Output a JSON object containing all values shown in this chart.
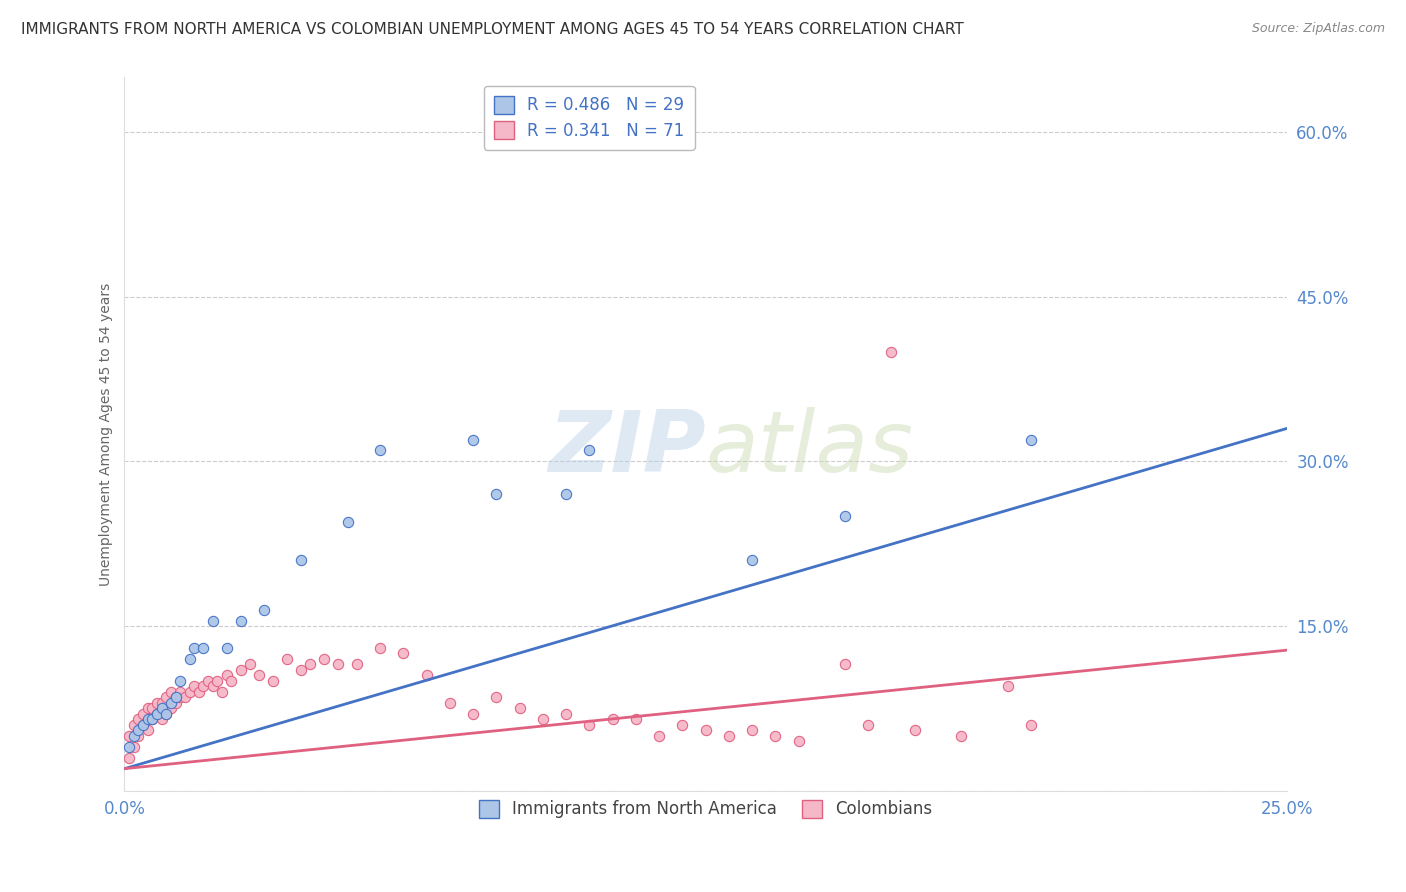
{
  "title": "IMMIGRANTS FROM NORTH AMERICA VS COLOMBIAN UNEMPLOYMENT AMONG AGES 45 TO 54 YEARS CORRELATION CHART",
  "source": "Source: ZipAtlas.com",
  "ylabel": "Unemployment Among Ages 45 to 54 years",
  "xmin": 0.0,
  "xmax": 0.25,
  "ymin": 0.0,
  "ymax": 0.65,
  "yticks": [
    0.0,
    0.15,
    0.3,
    0.45,
    0.6
  ],
  "ytick_labels": [
    "",
    "15.0%",
    "30.0%",
    "45.0%",
    "60.0%"
  ],
  "xticks": [
    0.0,
    0.05,
    0.1,
    0.15,
    0.2,
    0.25
  ],
  "xtick_labels": [
    "0.0%",
    "",
    "",
    "",
    "",
    "25.0%"
  ],
  "watermark_part1": "ZIP",
  "watermark_part2": "atlas",
  "blue_color": "#adc6e8",
  "blue_line_color": "#4472c4",
  "pink_color": "#f5b8c8",
  "pink_line_color": "#e06080",
  "legend_blue_label": "R = 0.486   N = 29",
  "legend_pink_label": "R = 0.341   N = 71",
  "legend_series1": "Immigrants from North America",
  "legend_series2": "Colombians",
  "blue_scatter_x": [
    0.001,
    0.002,
    0.003,
    0.004,
    0.005,
    0.006,
    0.007,
    0.008,
    0.009,
    0.01,
    0.011,
    0.012,
    0.014,
    0.015,
    0.017,
    0.019,
    0.022,
    0.025,
    0.03,
    0.038,
    0.048,
    0.055,
    0.075,
    0.08,
    0.095,
    0.1,
    0.135,
    0.155,
    0.195
  ],
  "blue_scatter_y": [
    0.04,
    0.05,
    0.055,
    0.06,
    0.065,
    0.065,
    0.07,
    0.075,
    0.07,
    0.08,
    0.085,
    0.1,
    0.12,
    0.13,
    0.13,
    0.155,
    0.13,
    0.155,
    0.165,
    0.21,
    0.245,
    0.31,
    0.32,
    0.27,
    0.27,
    0.31,
    0.21,
    0.25,
    0.32
  ],
  "pink_scatter_x": [
    0.001,
    0.001,
    0.002,
    0.002,
    0.003,
    0.003,
    0.004,
    0.004,
    0.005,
    0.005,
    0.006,
    0.006,
    0.007,
    0.007,
    0.008,
    0.008,
    0.009,
    0.009,
    0.01,
    0.01,
    0.011,
    0.011,
    0.012,
    0.012,
    0.013,
    0.014,
    0.015,
    0.016,
    0.017,
    0.018,
    0.019,
    0.02,
    0.021,
    0.022,
    0.023,
    0.025,
    0.027,
    0.029,
    0.032,
    0.035,
    0.038,
    0.04,
    0.043,
    0.046,
    0.05,
    0.055,
    0.06,
    0.065,
    0.07,
    0.075,
    0.08,
    0.085,
    0.09,
    0.095,
    0.1,
    0.105,
    0.11,
    0.115,
    0.12,
    0.125,
    0.13,
    0.135,
    0.14,
    0.145,
    0.155,
    0.16,
    0.165,
    0.17,
    0.18,
    0.19,
    0.195
  ],
  "pink_scatter_y": [
    0.03,
    0.05,
    0.04,
    0.06,
    0.05,
    0.065,
    0.06,
    0.07,
    0.055,
    0.075,
    0.065,
    0.075,
    0.07,
    0.08,
    0.065,
    0.08,
    0.07,
    0.085,
    0.075,
    0.09,
    0.08,
    0.085,
    0.085,
    0.09,
    0.085,
    0.09,
    0.095,
    0.09,
    0.095,
    0.1,
    0.095,
    0.1,
    0.09,
    0.105,
    0.1,
    0.11,
    0.115,
    0.105,
    0.1,
    0.12,
    0.11,
    0.115,
    0.12,
    0.115,
    0.115,
    0.13,
    0.125,
    0.105,
    0.08,
    0.07,
    0.085,
    0.075,
    0.065,
    0.07,
    0.06,
    0.065,
    0.065,
    0.05,
    0.06,
    0.055,
    0.05,
    0.055,
    0.05,
    0.045,
    0.115,
    0.06,
    0.4,
    0.055,
    0.05,
    0.095,
    0.06
  ],
  "background_color": "#ffffff",
  "grid_color": "#cccccc",
  "title_color": "#333333",
  "axis_label_color": "#666666",
  "tick_color": "#5588cc",
  "tick_fontsize": 12,
  "title_fontsize": 11,
  "ylabel_fontsize": 10
}
